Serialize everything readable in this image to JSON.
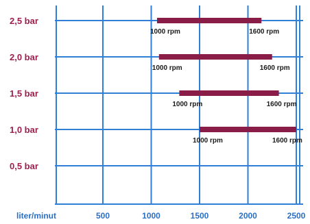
{
  "chart_data": {
    "type": "bar",
    "orientation": "horizontal",
    "title": "",
    "xlabel": "liter/minut",
    "ylabel": "",
    "x_ticks": [
      500,
      1000,
      1500,
      2000,
      2500
    ],
    "x_tick_labels": [
      "500",
      "1000",
      "1500",
      "2000",
      "2500"
    ],
    "xlim": [
      0,
      2500
    ],
    "grid": true,
    "categories": [
      "2,5 bar",
      "2,0 bar",
      "1,5 bar",
      "1,0 bar",
      "0,5 bar"
    ],
    "ranges": [
      {
        "category": "2,5 bar",
        "start": 1060,
        "end": 2140,
        "start_label": "1000 rpm",
        "end_label": "1600 rpm"
      },
      {
        "category": "2,0 bar",
        "start": 1080,
        "end": 2250,
        "start_label": "1000 rpm",
        "end_label": "1600 rpm"
      },
      {
        "category": "1,5 bar",
        "start": 1290,
        "end": 2320,
        "start_label": "1000 rpm",
        "end_label": "1600 rpm"
      },
      {
        "category": "1,0 bar",
        "start": 1500,
        "end": 2500,
        "start_label": "1000 rpm",
        "end_label": "1600 rpm"
      }
    ],
    "colors": {
      "bar": "#8a1d47",
      "grid": "#2f7fd8",
      "category_label": "#9c1f4d",
      "axis_label": "#2a6fc4"
    }
  }
}
